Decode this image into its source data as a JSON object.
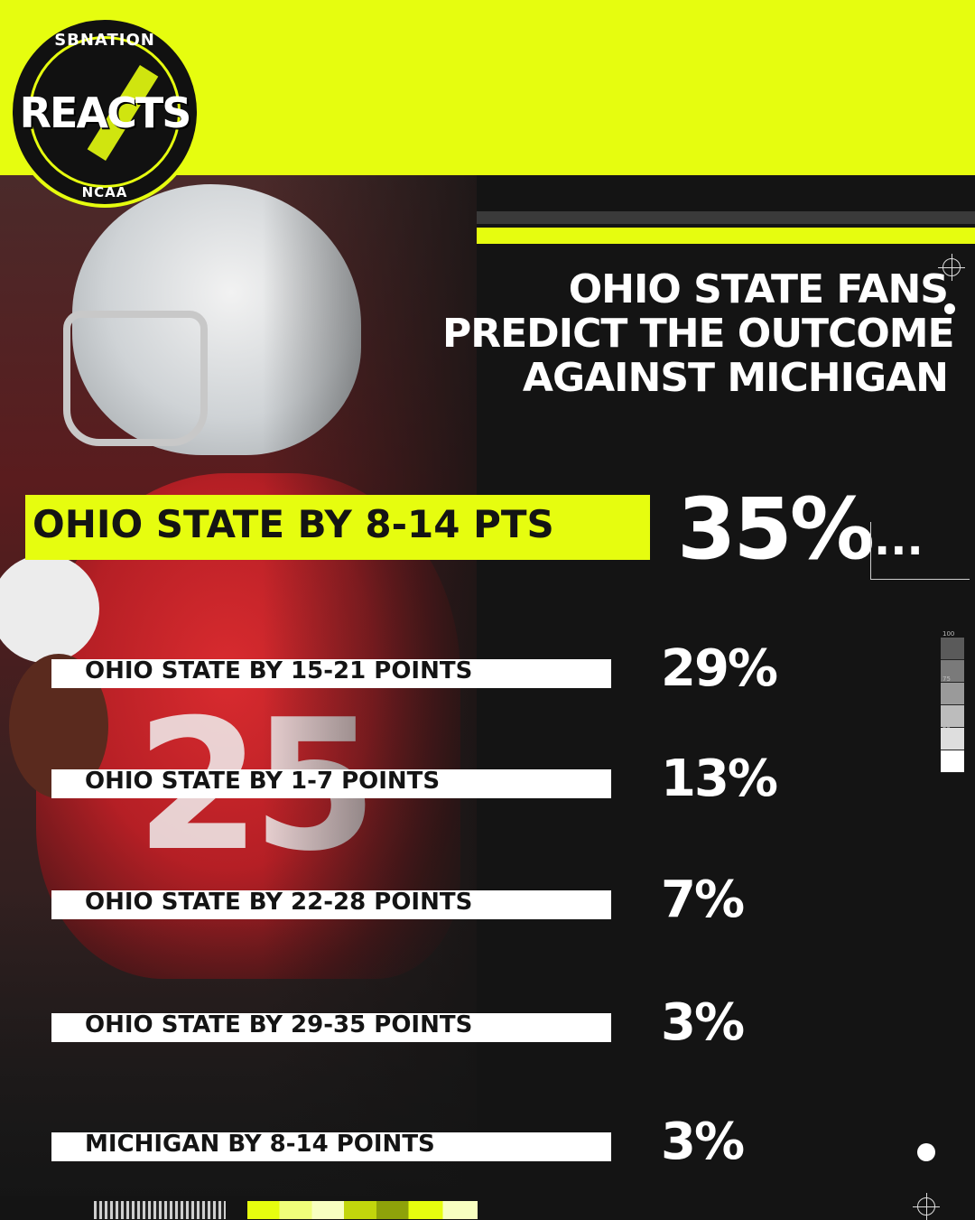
{
  "brand": {
    "network": "SBNATION",
    "name": "REACTS",
    "league": "NCAA"
  },
  "title_lines": [
    "OHIO STATE FANS",
    "PREDICT THE OUTCOME",
    "AGAINST MICHIGAN"
  ],
  "photo": {
    "jersey_number": "25"
  },
  "top_result": {
    "label": "OHIO STATE BY 8-14 PTS",
    "value_text": "35%",
    "dots": "..."
  },
  "results": [
    {
      "label": "OHIO STATE BY 15-21 POINTS",
      "value_text": "29%"
    },
    {
      "label": "OHIO STATE BY 1-7 POINTS",
      "value_text": "13%"
    },
    {
      "label": "OHIO STATE BY 22-28 POINTS",
      "value_text": "7%"
    },
    {
      "label": "OHIO STATE BY 29-35 POINTS",
      "value_text": "3%"
    },
    {
      "label": "MICHIGAN BY 8-14 POINTS",
      "value_text": "3%"
    }
  ],
  "scale_labels": [
    "100",
    "75",
    "25"
  ],
  "colors": {
    "accent": "#e6fd0f",
    "background": "#141414",
    "label_bar": "#ffffff",
    "text_light": "#ffffff",
    "text_dark": "#141414"
  },
  "chart_data": {
    "type": "bar",
    "title": "OHIO STATE FANS PREDICT THE OUTCOME AGAINST MICHIGAN",
    "categories": [
      "OHIO STATE BY 8-14 PTS",
      "OHIO STATE BY 15-21 POINTS",
      "OHIO STATE BY 1-7 POINTS",
      "OHIO STATE BY 22-28 POINTS",
      "OHIO STATE BY 29-35 POINTS",
      "MICHIGAN BY 8-14 POINTS"
    ],
    "values": [
      35,
      29,
      13,
      7,
      3,
      3
    ],
    "unit": "%",
    "xlabel": "",
    "ylabel": ""
  }
}
